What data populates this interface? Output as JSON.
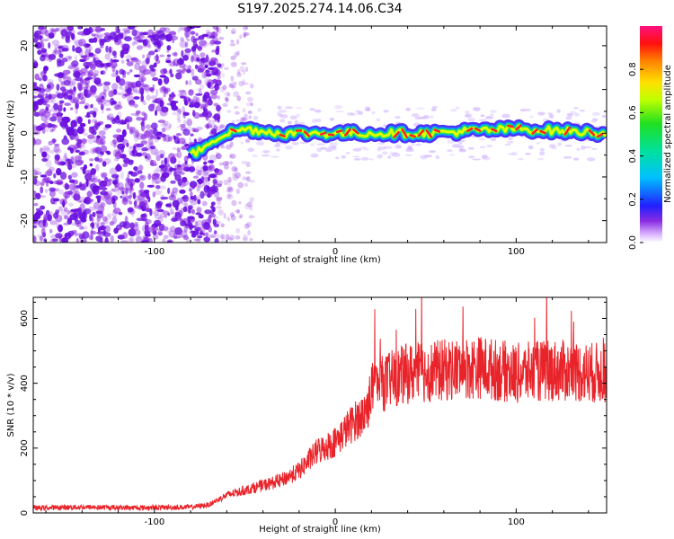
{
  "title": "S197.2025.274.14.06.C34",
  "chart_data": [
    {
      "type": "heatmap",
      "name": "spectrogram",
      "xlabel": "Height of straight line (km)",
      "ylabel": "Frequency (Hz)",
      "xlim": [
        -167,
        150
      ],
      "ylim": [
        -25,
        24.5
      ],
      "xticks": [
        -100,
        0,
        100
      ],
      "xtick_labels": [
        "-100",
        "0",
        "100"
      ],
      "yticks": [
        -20,
        -10,
        0,
        10,
        20
      ],
      "ytick_labels": [
        "-20",
        "-10",
        "0",
        "10",
        "20"
      ],
      "colorbar": {
        "label": "Normalized spectral amplitude",
        "range": [
          0,
          1
        ],
        "ticks": [
          0.0,
          0.2,
          0.4,
          0.6,
          0.8
        ],
        "tick_labels": [
          "0.0",
          "0.2",
          "0.4",
          "0.6",
          "0.8"
        ],
        "colormap": "rainbow"
      },
      "signal_track": {
        "description_x": [
          -80,
          -75,
          -70,
          -60,
          -50,
          -30,
          0,
          50,
          100,
          150
        ],
        "center_freq_hz": [
          -5,
          -4,
          -2,
          0,
          1,
          0,
          0,
          0,
          1,
          0
        ]
      },
      "colors": {
        "noise": "#8a2be2",
        "signal_core": "#ff2020",
        "signal_mid": "#20e060",
        "signal_edge": "#1020ff"
      }
    },
    {
      "type": "line",
      "name": "snr",
      "xlabel": "Height of straight line (km)",
      "ylabel": "SNR (10 * v/v)",
      "xlim": [
        -167,
        150
      ],
      "ylim": [
        0,
        665
      ],
      "xticks": [
        -100,
        0,
        100
      ],
      "xtick_labels": [
        "-100",
        "0",
        "100"
      ],
      "yticks": [
        0,
        200,
        400,
        600
      ],
      "ytick_labels": [
        "0",
        "200",
        "400",
        "600"
      ],
      "color": "#e8242a",
      "series": [
        {
          "name": "SNR",
          "x": [
            -167,
            -140,
            -110,
            -80,
            -70,
            -65,
            -60,
            -50,
            -40,
            -30,
            -20,
            -15,
            -10,
            0,
            5,
            10,
            15,
            18,
            20,
            30,
            40,
            60,
            80,
            100,
            120,
            150
          ],
          "values": [
            15,
            18,
            16,
            18,
            25,
            40,
            55,
            70,
            85,
            100,
            130,
            160,
            190,
            220,
            250,
            280,
            300,
            330,
            380,
            410,
            430,
            440,
            450,
            430,
            440,
            430
          ]
        }
      ]
    }
  ]
}
